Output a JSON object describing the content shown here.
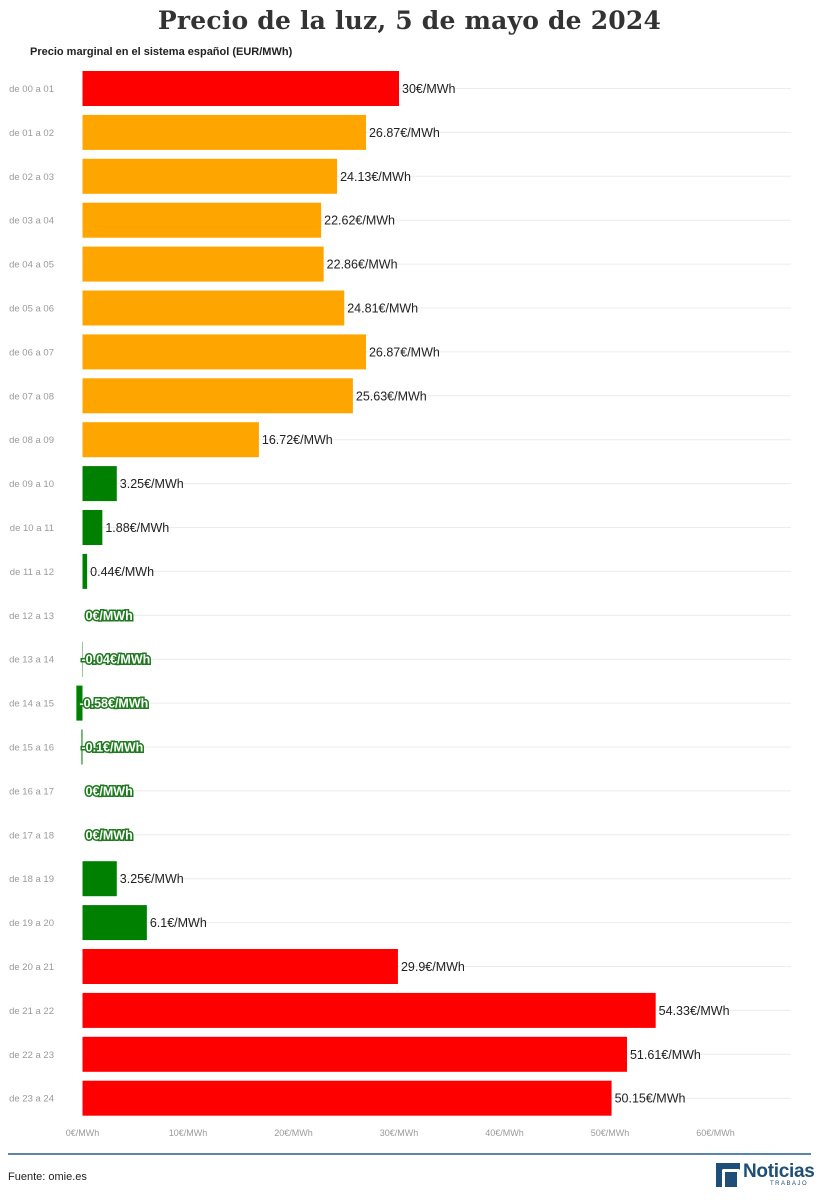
{
  "header": {
    "title": "Precio de la luz, 5 de mayo de 2024",
    "subtitle": "Precio marginal en el sistema español (EUR/MWh)"
  },
  "footer": {
    "source": "Fuente: omie.es",
    "logo_word": "Noticias",
    "logo_sub": "TRABAJO"
  },
  "colors": {
    "high": "#ff0000",
    "mid": "#ffa500",
    "low": "#008000",
    "grid": "#ececec"
  },
  "chart_data": {
    "type": "bar",
    "orientation": "horizontal",
    "categories": [
      "de 00 a 01",
      "de 01 a 02",
      "de 02 a 03",
      "de 03 a 04",
      "de 04 a 05",
      "de 05 a 06",
      "de 06 a 07",
      "de 07 a 08",
      "de 08 a 09",
      "de 09 a 10",
      "de 10 a 11",
      "de 11 a 12",
      "de 12 a 13",
      "de 13 a 14",
      "de 14 a 15",
      "de 15 a 16",
      "de 16 a 17",
      "de 17 a 18",
      "de 18 a 19",
      "de 19 a 20",
      "de 20 a 21",
      "de 21 a 22",
      "de 22 a 23",
      "de 23 a 24"
    ],
    "values": [
      30,
      26.87,
      24.13,
      22.62,
      22.86,
      24.81,
      26.87,
      25.63,
      16.72,
      3.25,
      1.88,
      0.44,
      0,
      -0.04,
      -0.58,
      -0.1,
      0,
      0,
      3.25,
      6.1,
      29.9,
      54.33,
      51.61,
      50.15
    ],
    "labels": [
      "30€/MWh",
      "26.87€/MWh",
      "24.13€/MWh",
      "22.62€/MWh",
      "22.86€/MWh",
      "24.81€/MWh",
      "26.87€/MWh",
      "25.63€/MWh",
      "16.72€/MWh",
      "3.25€/MWh",
      "1.88€/MWh",
      "0.44€/MWh",
      "0€/MWh",
      "-0.04€/MWh",
      "-0.58€/MWh",
      "-0.1€/MWh",
      "0€/MWh",
      "0€/MWh",
      "3.25€/MWh",
      "6.1€/MWh",
      "29.9€/MWh",
      "54.33€/MWh",
      "51.61€/MWh",
      "50.15€/MWh"
    ],
    "bar_colors": [
      "high",
      "mid",
      "mid",
      "mid",
      "mid",
      "mid",
      "mid",
      "mid",
      "mid",
      "low",
      "low",
      "low",
      "low",
      "low",
      "low",
      "low",
      "low",
      "low",
      "low",
      "low",
      "high",
      "high",
      "high",
      "high"
    ],
    "x_ticks": [
      0,
      10,
      20,
      30,
      40,
      50,
      60
    ],
    "x_tick_labels": [
      "0€/MWh",
      "10€/MWh",
      "20€/MWh",
      "30€/MWh",
      "40€/MWh",
      "50€/MWh",
      "60€/MWh"
    ],
    "xlim": [
      0,
      60
    ],
    "grid": true
  }
}
